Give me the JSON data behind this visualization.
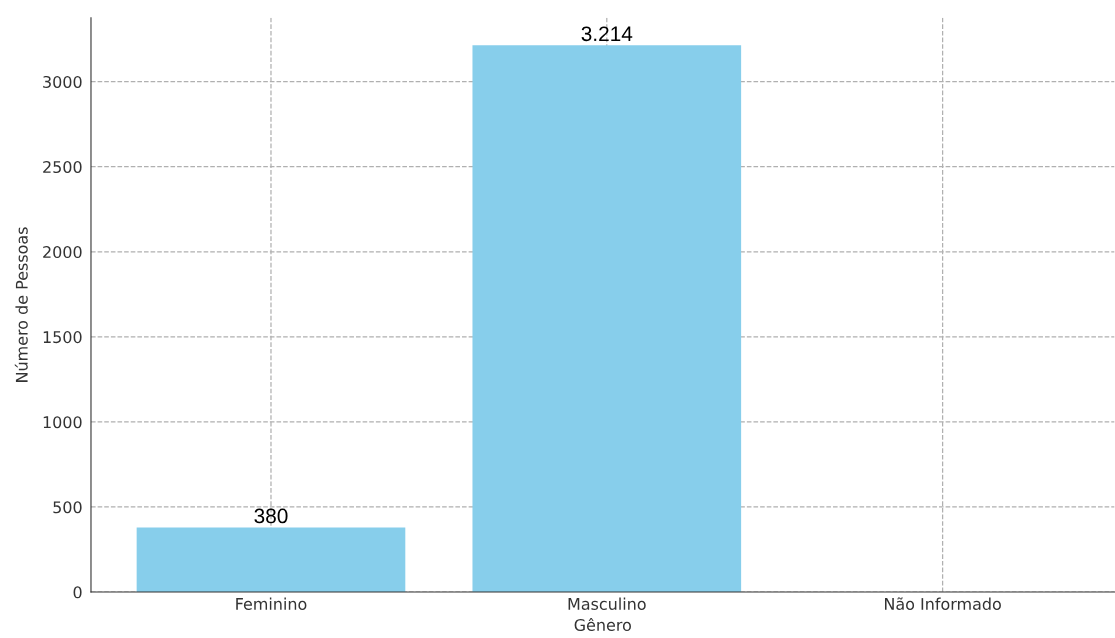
{
  "chart_data": {
    "type": "bar",
    "xlabel": "Gênero",
    "ylabel": "Número de Pessoas",
    "categories": [
      "Feminino",
      "Masculino",
      "Não Informado"
    ],
    "values": [
      380,
      3214,
      0
    ],
    "color": "#87ceeb",
    "value_labels": [
      "380",
      "3.214",
      null
    ],
    "ylim": [
      0,
      3375
    ],
    "yticks": [
      0,
      500,
      1000,
      1500,
      2000,
      2500,
      3000
    ],
    "grid": true
  }
}
